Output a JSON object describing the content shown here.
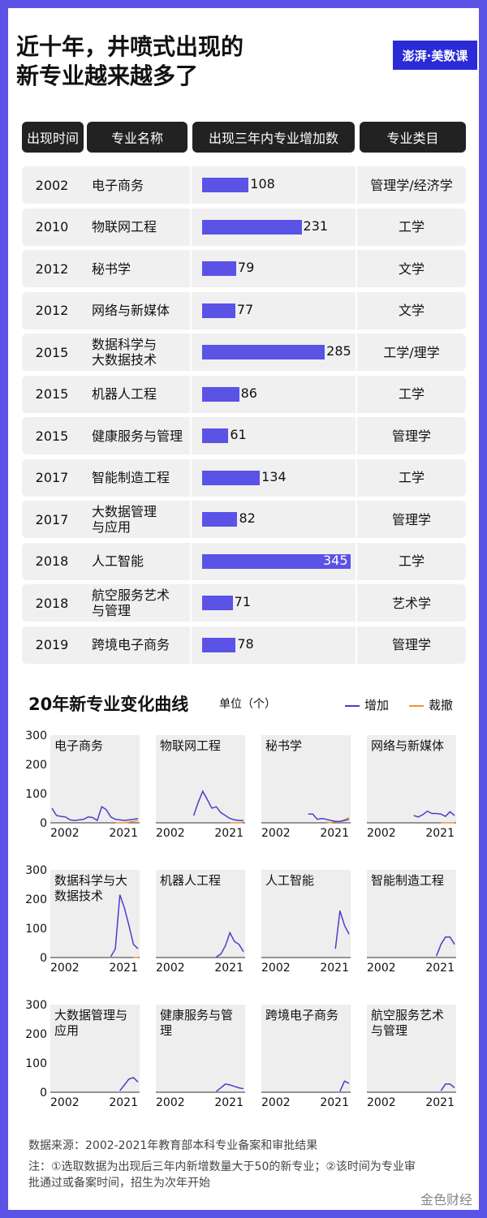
{
  "title_line1": "近十年，井喷式出现的",
  "title_line2": "新专业越来越多了",
  "brand": "澎湃·美数课",
  "headers": [
    "出现时间",
    "专业名称",
    "出现三年内专业增加数",
    "专业类目"
  ],
  "rows": [
    {
      "year": "2002",
      "name1": "电子商务",
      "name2": "",
      "count": "108",
      "category": "管理学/经济学"
    },
    {
      "year": "2010",
      "name1": "物联网工程",
      "name2": "",
      "count": "231",
      "category": "工学"
    },
    {
      "year": "2012",
      "name1": "秘书学",
      "name2": "",
      "count": "79",
      "category": "文学"
    },
    {
      "year": "2012",
      "name1": "网络与新媒体",
      "name2": "",
      "count": "77",
      "category": "文学"
    },
    {
      "year": "2015",
      "name1": "数据科学与",
      "name2": "大数据技术",
      "count": "285",
      "category": "工学/理学"
    },
    {
      "year": "2015",
      "name1": "机器人工程",
      "name2": "",
      "count": "86",
      "category": "工学"
    },
    {
      "year": "2015",
      "name1": "健康服务与管理",
      "name2": "",
      "count": "61",
      "category": "管理学"
    },
    {
      "year": "2017",
      "name1": "智能制造工程",
      "name2": "",
      "count": "134",
      "category": "工学"
    },
    {
      "year": "2017",
      "name1": "大数据管理",
      "name2": "与应用",
      "count": "82",
      "category": "管理学"
    },
    {
      "year": "2018",
      "name1": "人工智能",
      "name2": "",
      "count": "345",
      "category": "工学"
    },
    {
      "year": "2018",
      "name1": "航空服务艺术",
      "name2": "与管理",
      "count": "71",
      "category": "艺术学"
    },
    {
      "year": "2019",
      "name1": "跨境电子商务",
      "name2": "",
      "count": "78",
      "category": "管理学"
    }
  ],
  "section_title": "20年新专业变化曲线",
  "unit": "单位（个）",
  "legend": {
    "add": "增加",
    "remove": "裁撤",
    "add_color": "#4a3fc8",
    "remove_color": "#f0923a"
  },
  "source": "数据来源：2002-2021年教育部本科专业备案和审批结果",
  "note1": "注：①选取数据为出现后三年内新增数量大于50的新专业；②该时间为专业审",
  "note2": "批通过或备案时间，招生为次年开始",
  "watermark": "金色财经",
  "chart_data": {
    "type": "line",
    "x_range": [
      2002,
      2021
    ],
    "x_ticks": [
      "2002",
      "2021"
    ],
    "ylim": [
      0,
      300
    ],
    "y_ticks": [
      "0",
      "100",
      "200",
      "300"
    ],
    "series_names": [
      "增加",
      "裁撤"
    ],
    "panels": [
      {
        "label": "电子商务",
        "add_x": [
          2002,
          2003,
          2004,
          2005,
          2006,
          2007,
          2008,
          2009,
          2010,
          2011,
          2012,
          2013,
          2014,
          2015,
          2016,
          2017,
          2018,
          2019,
          2020,
          2021
        ],
        "add_y": [
          50,
          25,
          22,
          20,
          10,
          8,
          10,
          12,
          20,
          18,
          8,
          55,
          45,
          20,
          12,
          10,
          8,
          10,
          12,
          15
        ],
        "rem_x": [
          2016,
          2017,
          2018,
          2019,
          2020,
          2021
        ],
        "rem_y": [
          0,
          0,
          0,
          2,
          5,
          8
        ]
      },
      {
        "label": "物联网工程",
        "add_x": [
          2010,
          2011,
          2012,
          2013,
          2014,
          2015,
          2016,
          2017,
          2018,
          2019,
          2020,
          2021
        ],
        "add_y": [
          25,
          70,
          108,
          80,
          50,
          55,
          35,
          25,
          15,
          10,
          8,
          8
        ],
        "rem_x": [
          2018,
          2019,
          2020,
          2021
        ],
        "rem_y": [
          0,
          0,
          0,
          2
        ]
      },
      {
        "label": "秘书学",
        "add_x": [
          2012,
          2013,
          2014,
          2015,
          2016,
          2017,
          2018,
          2019,
          2020,
          2021
        ],
        "add_y": [
          30,
          30,
          12,
          15,
          12,
          8,
          5,
          5,
          8,
          12
        ],
        "rem_x": [
          2016,
          2017,
          2018,
          2019,
          2020,
          2021
        ],
        "rem_y": [
          2,
          0,
          5,
          5,
          10,
          18
        ]
      },
      {
        "label": "网络与新媒体",
        "add_x": [
          2012,
          2013,
          2014,
          2015,
          2016,
          2017,
          2018,
          2019,
          2020,
          2021
        ],
        "add_y": [
          25,
          20,
          28,
          40,
          32,
          32,
          30,
          22,
          38,
          25
        ],
        "rem_x": [
          2018,
          2019,
          2020,
          2021
        ],
        "rem_y": [
          0,
          0,
          0,
          0
        ]
      },
      {
        "label": "数据科学与大数据技术",
        "add_x": [
          2015,
          2016,
          2017,
          2018,
          2019,
          2020,
          2021
        ],
        "add_y": [
          3,
          30,
          215,
          170,
          110,
          45,
          30
        ],
        "rem_x": [
          2020,
          2021
        ],
        "rem_y": [
          0,
          0
        ]
      },
      {
        "label": "机器人工程",
        "add_x": [
          2015,
          2016,
          2017,
          2018,
          2019,
          2020,
          2021
        ],
        "add_y": [
          2,
          12,
          40,
          85,
          55,
          45,
          20
        ],
        "rem_x": [],
        "rem_y": []
      },
      {
        "label": "人工智能",
        "add_x": [
          2018,
          2019,
          2020,
          2021
        ],
        "add_y": [
          30,
          160,
          110,
          80
        ],
        "rem_x": [],
        "rem_y": []
      },
      {
        "label": "智能制造工程",
        "add_x": [
          2017,
          2018,
          2019,
          2020,
          2021
        ],
        "add_y": [
          5,
          45,
          70,
          70,
          45
        ],
        "rem_x": [],
        "rem_y": []
      },
      {
        "label": "大数据管理与应用",
        "add_x": [
          2017,
          2018,
          2019,
          2020,
          2021
        ],
        "add_y": [
          5,
          25,
          45,
          50,
          35
        ],
        "rem_x": [],
        "rem_y": []
      },
      {
        "label": "健康服务与管理",
        "add_x": [
          2015,
          2016,
          2017,
          2018,
          2019,
          2020,
          2021
        ],
        "add_y": [
          3,
          15,
          28,
          25,
          20,
          15,
          12
        ],
        "rem_x": [],
        "rem_y": []
      },
      {
        "label": "跨境电子商务",
        "add_x": [
          2019,
          2020,
          2021
        ],
        "add_y": [
          3,
          38,
          30
        ],
        "rem_x": [],
        "rem_y": []
      },
      {
        "label": "航空服务艺术与管理",
        "add_x": [
          2018,
          2019,
          2020,
          2021
        ],
        "add_y": [
          5,
          28,
          28,
          15
        ],
        "rem_x": [],
        "rem_y": []
      }
    ]
  }
}
